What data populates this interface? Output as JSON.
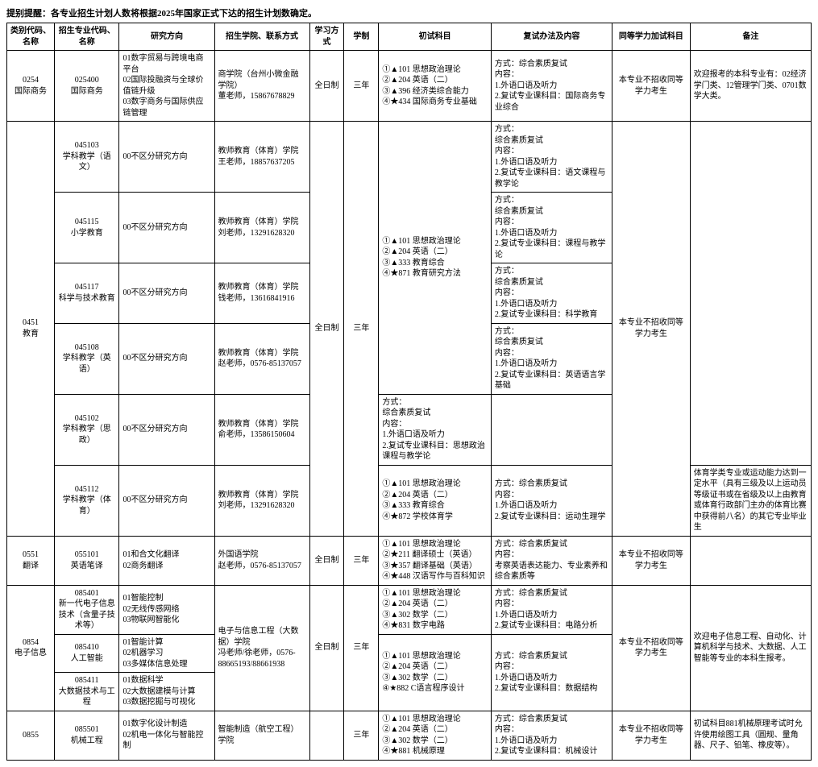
{
  "notice": "提别提醒：各专业招生计划人数将根据2025年国家正式下达的招生计划数确定。",
  "columns": [
    "类别代码、名称",
    "招生专业代码、名称",
    "研究方向",
    "招生学院、联系方式",
    "学习方式",
    "学制",
    "初试科目",
    "复试办法及内容",
    "同等学力加试科目",
    "备注"
  ],
  "rows": [
    {
      "cat": "0254\n国际商务",
      "prof": "025400\n国际商务",
      "dir": "01数字贸易与跨境电商平台\n02国际投融资与全球价值链升级\n03数字商务与国际供应链管理",
      "dept": "商学院（台州小微金融学院）\n董老师，15867678829",
      "mode": "全日制",
      "dur": "三年",
      "init": "①▲101 思想政治理论\n②▲204 英语（二）\n③▲396 经济类综合能力\n④★434 国际商务专业基础",
      "ret": "方式：综合素质复试\n内容：\n1.外语口语及听力\n2.复试专业课科目：国际商务专业综合",
      "same": "本专业不招收同等学力考生",
      "note": "欢迎报考的本科专业有：02经济学门类、12管理学门类、0701数学大类。"
    },
    {
      "cat": {
        "text": "0451\n教育",
        "rowspan": 6
      },
      "prof": "045103\n学科教学（语文）",
      "dir": "00不区分研究方向",
      "dept": "教师教育（体育）学院\n王老师，18857637205",
      "mode": {
        "text": "全日制",
        "rowspan": 6
      },
      "dur": {
        "text": "三年",
        "rowspan": 6
      },
      "init": {
        "text": "①▲101 思想政治理论\n②▲204 英语（二）\n③▲333 教育综合\n④★871 教育研究方法",
        "rowspan": 4
      },
      "ret": "方式：\n综合素质复试\n内容：\n1.外语口语及听力\n2.复试专业课科目：语文课程与教学论",
      "same": {
        "text": "本专业不招收同等学力考生",
        "rowspan": 6
      },
      "note": {
        "text": "",
        "rowspan": 5
      }
    },
    {
      "prof": "045115\n小学教育",
      "dir": "00不区分研究方向",
      "dept": "教师教育（体育）学院\n刘老师，13291628320",
      "ret": "方式：\n综合素质复试\n内容：\n1.外语口语及听力\n2.复试专业课科目：课程与教学论"
    },
    {
      "prof": "045117\n科学与技术教育",
      "dir": "00不区分研究方向",
      "dept": "教师教育（体育）学院\n钱老师，13616841916",
      "ret": "方式：\n综合素质复试\n内容：\n1.外语口语及听力\n2.复试专业课科目：科学教育"
    },
    {
      "prof": "045108\n学科教学（英语）",
      "dir": "00不区分研究方向",
      "dept": "教师教育（体育）学院\n赵老师，0576-85137057",
      "ret": "方式：\n综合素质复试\n内容：\n1.外语口语及听力\n2.复试专业课科目：英语语言学基础"
    },
    {
      "prof": "045102\n学科教学（思政）",
      "dir": "00不区分研究方向",
      "dept": "教师教育（体育）学院\n俞老师，13586150604",
      "init": {
        "text": "",
        "rowspan": 1,
        "hidden": true
      },
      "ret": "方式：\n综合素质复试\n内容：\n1.外语口语及听力\n2.复试专业课科目：思想政治课程与教学论"
    },
    {
      "prof": "045112\n学科教学（体育）",
      "dir": "00不区分研究方向",
      "dept": "教师教育（体育）学院\n刘老师，13291628320",
      "init": "①▲101 思想政治理论\n②▲204 英语（二）\n③▲333 教育综合\n④★872 学校体育学",
      "ret": "方式：综合素质复试\n内容：\n1.外语口语及听力\n2.复试专业课科目：运动生理学",
      "note": "体育学类专业或运动能力达到一定水平（具有三级及以上运动员等级证书或在省级及以上由教育或体育行政部门主办的体育比赛中获得前八名）的其它专业毕业生"
    },
    {
      "cat": "0551\n翻译",
      "prof": "055101\n英语笔译",
      "dir": "01和合文化翻译\n02商务翻译",
      "dept": "外国语学院\n赵老师，0576-85137057",
      "mode": "全日制",
      "dur": "三年",
      "init": "①▲101 思想政治理论\n②★211 翻译硕士（英语）\n③★357 翻译基础（英语）\n④★448 汉语写作与百科知识",
      "ret": "方式：综合素质复试\n内容：\n考察英语表达能力、专业素养和综合素质等",
      "same": "本专业不招收同等学力考生",
      "note": ""
    },
    {
      "cat": {
        "text": "0854\n电子信息",
        "rowspan": 3
      },
      "prof": "085401\n新一代电子信息技术（含量子技术等）",
      "dir": "01智能控制\n02无线传感网络\n03物联网智能化",
      "dept": {
        "text": "电子与信息工程（大数据）学院\n冯老师/徐老师，0576-88665193/88661938",
        "rowspan": 3
      },
      "mode": {
        "text": "全日制",
        "rowspan": 3
      },
      "dur": {
        "text": "三年",
        "rowspan": 3
      },
      "init": "①▲101 思想政治理论\n②▲204 英语（二）\n③▲302 数学（二）\n④★831 数字电路",
      "ret": "方式：综合素质复试\n内容：\n1.外语口语及听力\n2.复试专业课科目：电路分析",
      "same": {
        "text": "本专业不招收同等学力考生",
        "rowspan": 3
      },
      "note": {
        "text": "欢迎电子信息工程、自动化、计算机科学与技术、大数据、人工智能等专业的本科生报考。",
        "rowspan": 3
      }
    },
    {
      "prof": "085410\n人工智能",
      "dir": "01智能计算\n02机器学习\n03多媒体信息处理",
      "init": {
        "text": "①▲101 思想政治理论\n②▲204 英语（二）\n③▲302 数学（二）\n④★882 C语言程序设计",
        "rowspan": 2
      },
      "ret": {
        "text": "方式：综合素质复试\n内容：\n1.外语口语及听力\n2.复试专业课科目：数据结构",
        "rowspan": 2
      }
    },
    {
      "prof": "085411\n大数据技术与工程",
      "dir": "01数据科学\n02大数据建模与计算\n03数据挖掘与可视化"
    },
    {
      "cat": {
        "text": "0855",
        "rowspan": 1
      },
      "prof": "085501\n机械工程",
      "dir": "01数字化设计制造\n02机电一体化与智能控制",
      "dept": {
        "text": "智能制造（航空工程）学院",
        "clip": true
      },
      "mode": {
        "text": "",
        "clip": true
      },
      "dur": {
        "text": "三年",
        "clip": true
      },
      "init": "①▲101 思想政治理论\n②▲204 英语（二）\n③▲302 数学（二）\n④★881 机械原理",
      "ret": "方式：综合素质复试\n内容：\n1.外语口语及听力\n2.复试专业课科目：机械设计",
      "same": "本专业不招收同等学力考生",
      "note": "初试科目881机械原理考试时允许使用绘图工具（圆规、量角器、尺子、铅笔、橡皮等）。"
    }
  ]
}
